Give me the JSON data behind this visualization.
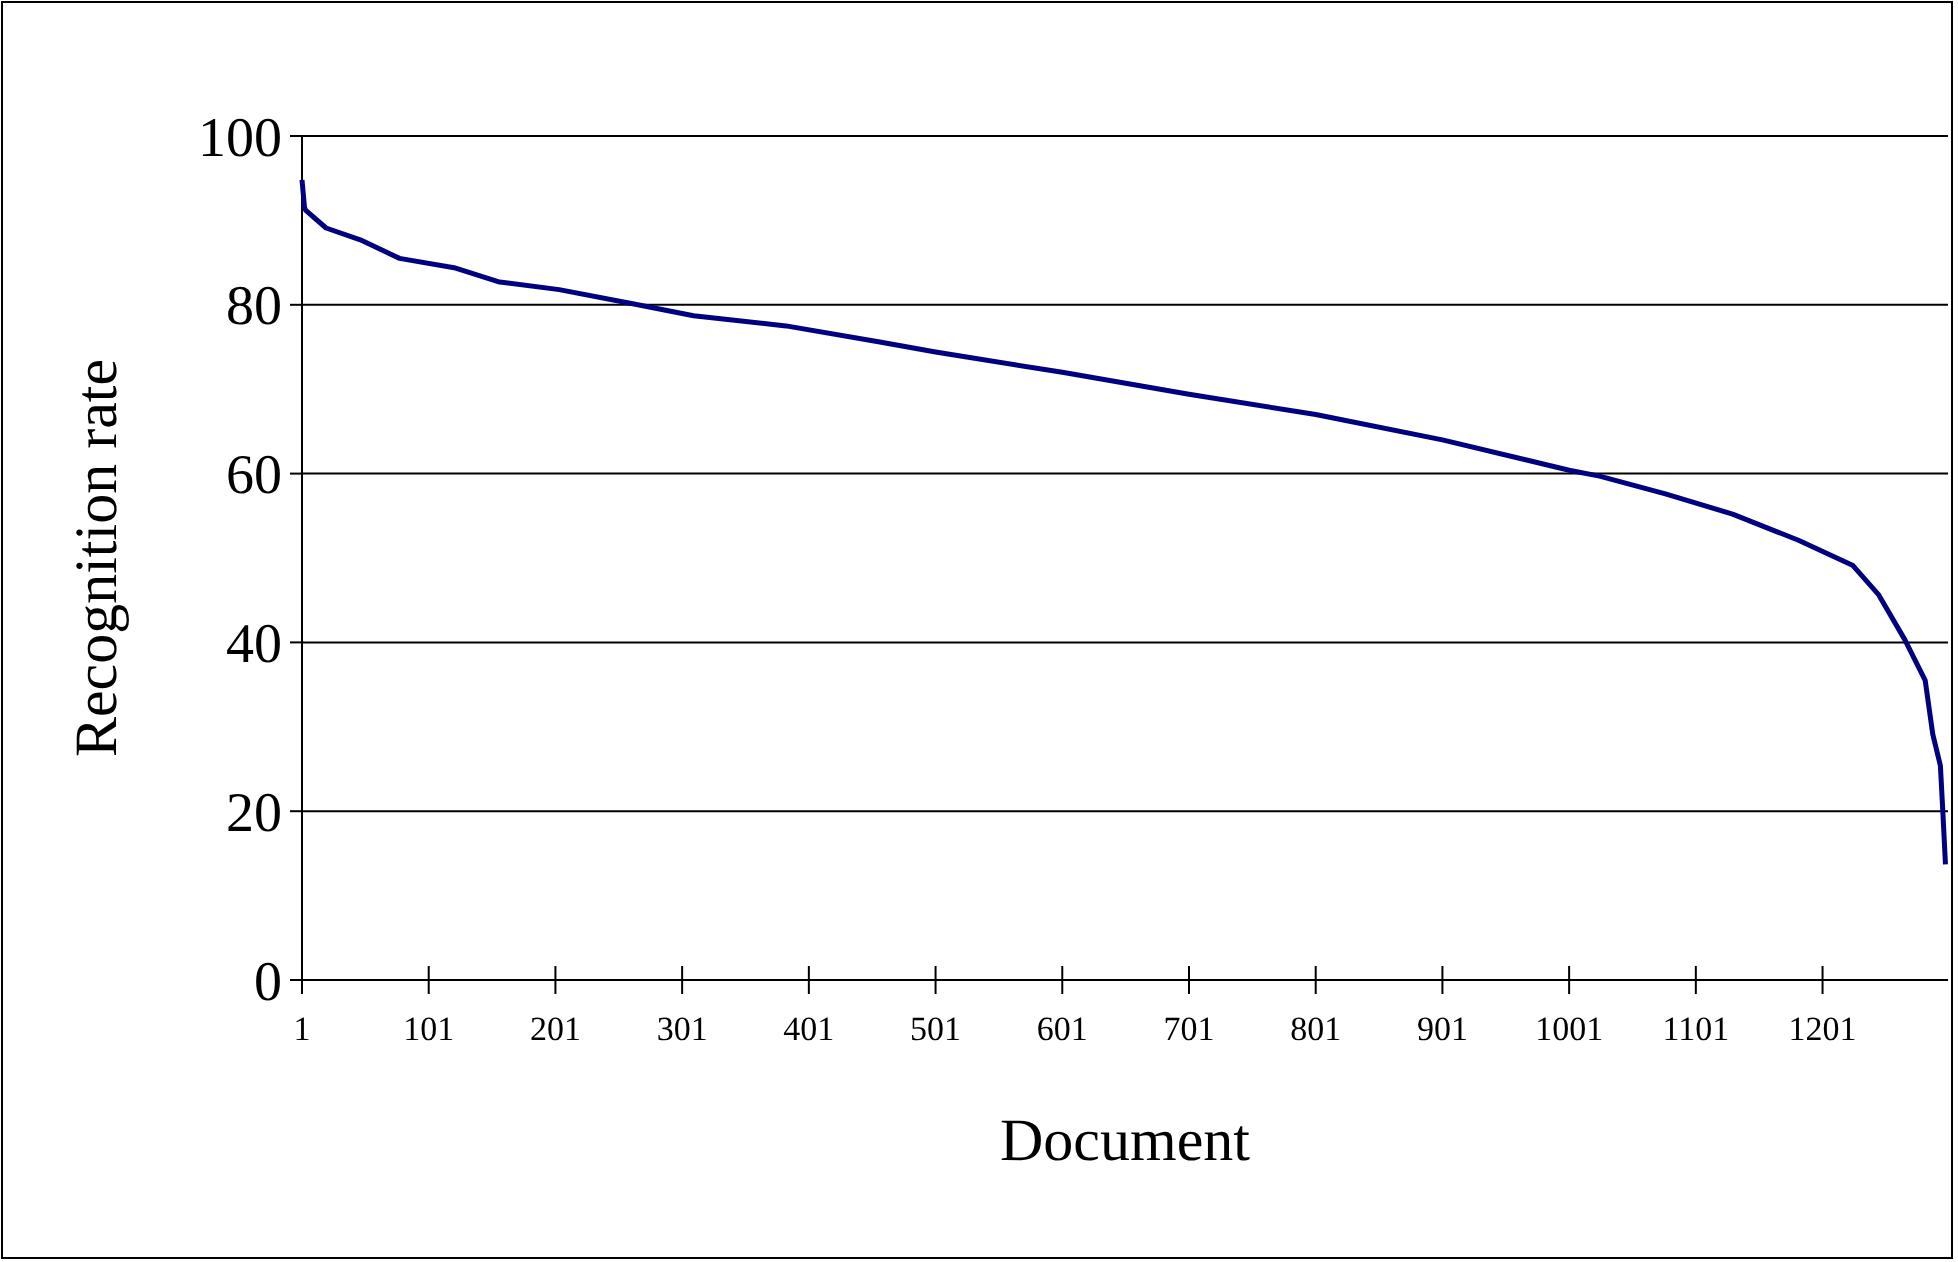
{
  "chart_data": {
    "type": "line",
    "xlabel": "Document",
    "ylabel": "Recognition rate",
    "xlim": [
      1,
      1300
    ],
    "xticks": [
      1,
      101,
      201,
      301,
      401,
      501,
      601,
      701,
      801,
      901,
      1001,
      1101,
      1201
    ],
    "ylim": [
      0,
      100
    ],
    "yticks": [
      0,
      20,
      40,
      60,
      80,
      100
    ],
    "grid": "y",
    "marker": "none",
    "line_style": "solid",
    "series": [
      {
        "color": "#000080",
        "x": [
          1,
          3,
          4,
          20,
          47,
          78,
          121,
          157,
          204,
          263,
          310,
          383,
          457,
          501,
          601,
          701,
          801,
          901,
          1001,
          1025,
          1077,
          1130,
          1182,
          1225,
          1245,
          1266,
          1282,
          1288,
          1294,
          1296,
          1298
        ],
        "values": [
          94.8,
          91.5,
          91.2,
          89.1,
          87.7,
          85.5,
          84.4,
          82.7,
          81.8,
          80.1,
          78.7,
          77.5,
          75.6,
          74.4,
          72,
          69.4,
          67,
          64,
          60.4,
          59.7,
          57.6,
          55.2,
          52.1,
          49.1,
          45.7,
          40.3,
          35.5,
          29.1,
          25.4,
          19.7,
          13.7
        ]
      }
    ]
  }
}
